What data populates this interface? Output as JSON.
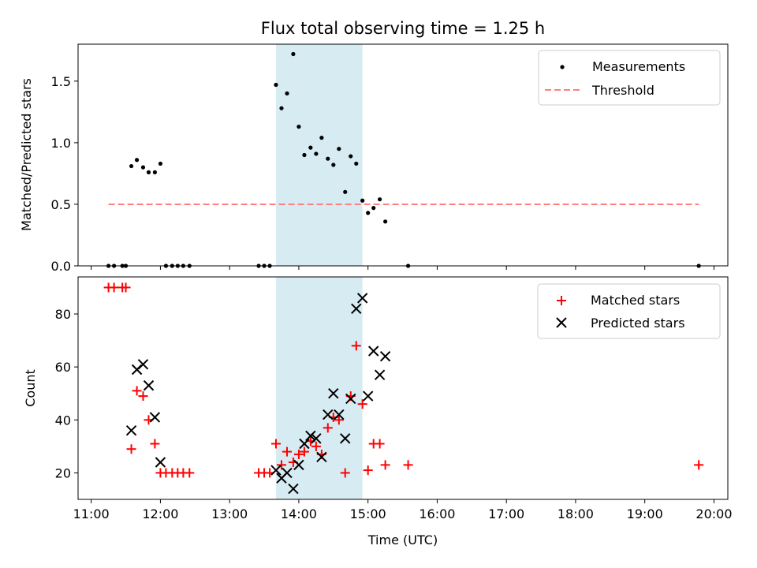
{
  "chart_data": {
    "title": "Flux total observing time = 1.25 h",
    "xlabel": "Time (UTC)",
    "x_tick_labels": [
      "11:00",
      "12:00",
      "13:00",
      "14:00",
      "15:00",
      "16:00",
      "17:00",
      "18:00",
      "19:00",
      "20:00"
    ],
    "x_ticks_hours": [
      11,
      12,
      13,
      14,
      15,
      16,
      17,
      18,
      19,
      20
    ],
    "xlim_hours": [
      10.81,
      20.2
    ],
    "shaded_region_hours": [
      13.67,
      14.92
    ],
    "colors": {
      "shade": "#add8e6",
      "measurements": "#000000",
      "threshold": "#ff7f7f",
      "matched": "#ff0000",
      "predicted": "#000000"
    },
    "panels": [
      {
        "type": "scatter",
        "ylabel": "Matched/Predicted stars",
        "ylim": [
          0,
          1.8
        ],
        "y_ticks": [
          0,
          0.5,
          1.0,
          1.5
        ],
        "y_tick_labels": [
          "0.0",
          "0.5",
          "1.0",
          "1.5"
        ],
        "legend_position": "top-right",
        "series": [
          {
            "name": "Measurements",
            "marker": "dot",
            "x": [
              11.25,
              11.33,
              11.45,
              11.5,
              11.58,
              11.66,
              11.75,
              11.83,
              11.92,
              12.0,
              12.08,
              12.17,
              12.25,
              12.33,
              12.42,
              13.42,
              13.5,
              13.58,
              13.67,
              13.75,
              13.83,
              13.92,
              14.0,
              14.08,
              14.17,
              14.25,
              14.33,
              14.42,
              14.5,
              14.58,
              14.67,
              14.75,
              14.83,
              14.92,
              15.0,
              15.08,
              15.17,
              15.25,
              15.58,
              19.78
            ],
            "y": [
              0,
              0,
              0,
              0,
              0.81,
              0.86,
              0.8,
              0.76,
              0.76,
              0.83,
              0,
              0,
              0,
              0,
              0,
              0,
              0,
              0,
              1.47,
              1.28,
              1.4,
              1.72,
              1.13,
              0.9,
              0.96,
              0.91,
              1.04,
              0.87,
              0.82,
              0.95,
              0.6,
              0.89,
              0.83,
              0.53,
              0.43,
              0.47,
              0.54,
              0.36,
              0,
              0
            ]
          },
          {
            "name": "Threshold",
            "line": "dashed",
            "x": [
              11.25,
              19.78
            ],
            "y": [
              0.5,
              0.5
            ]
          }
        ]
      },
      {
        "type": "scatter",
        "ylabel": "Count",
        "ylim": [
          10,
          94
        ],
        "y_ticks": [
          20,
          40,
          60,
          80
        ],
        "y_tick_labels": [
          "20",
          "40",
          "60",
          "80"
        ],
        "legend_position": "top-right",
        "series": [
          {
            "name": "Matched stars",
            "marker": "plus",
            "x": [
              11.25,
              11.33,
              11.45,
              11.5,
              11.58,
              11.66,
              11.75,
              11.83,
              11.92,
              12.0,
              12.08,
              12.17,
              12.25,
              12.33,
              12.42,
              13.42,
              13.5,
              13.58,
              13.67,
              13.75,
              13.83,
              13.92,
              14.0,
              14.08,
              14.17,
              14.25,
              14.33,
              14.42,
              14.5,
              14.58,
              14.67,
              14.75,
              14.83,
              14.92,
              15.0,
              15.08,
              15.17,
              15.25,
              15.58,
              19.78
            ],
            "y": [
              90,
              90,
              90,
              90,
              29,
              51,
              49,
              40,
              31,
              20,
              20,
              20,
              20,
              20,
              20,
              20,
              20,
              20,
              31,
              23,
              28,
              24,
              27,
              28,
              32,
              30,
              27,
              37,
              41,
              40,
              20,
              49,
              68,
              46,
              21,
              31,
              31,
              23,
              23,
              23
            ]
          },
          {
            "name": "Predicted stars",
            "marker": "x",
            "x": [
              11.58,
              11.66,
              11.75,
              11.83,
              11.92,
              12.0,
              13.67,
              13.75,
              13.83,
              13.92,
              14.0,
              14.08,
              14.17,
              14.25,
              14.33,
              14.42,
              14.5,
              14.58,
              14.67,
              14.75,
              14.83,
              14.92,
              15.0,
              15.08,
              15.17,
              15.25
            ],
            "y": [
              36,
              59,
              61,
              53,
              41,
              24,
              21,
              18,
              20,
              14,
              23,
              31,
              34,
              33,
              26,
              42,
              50,
              42,
              33,
              48,
              82,
              86,
              49,
              66,
              57,
              64
            ]
          }
        ]
      }
    ]
  }
}
